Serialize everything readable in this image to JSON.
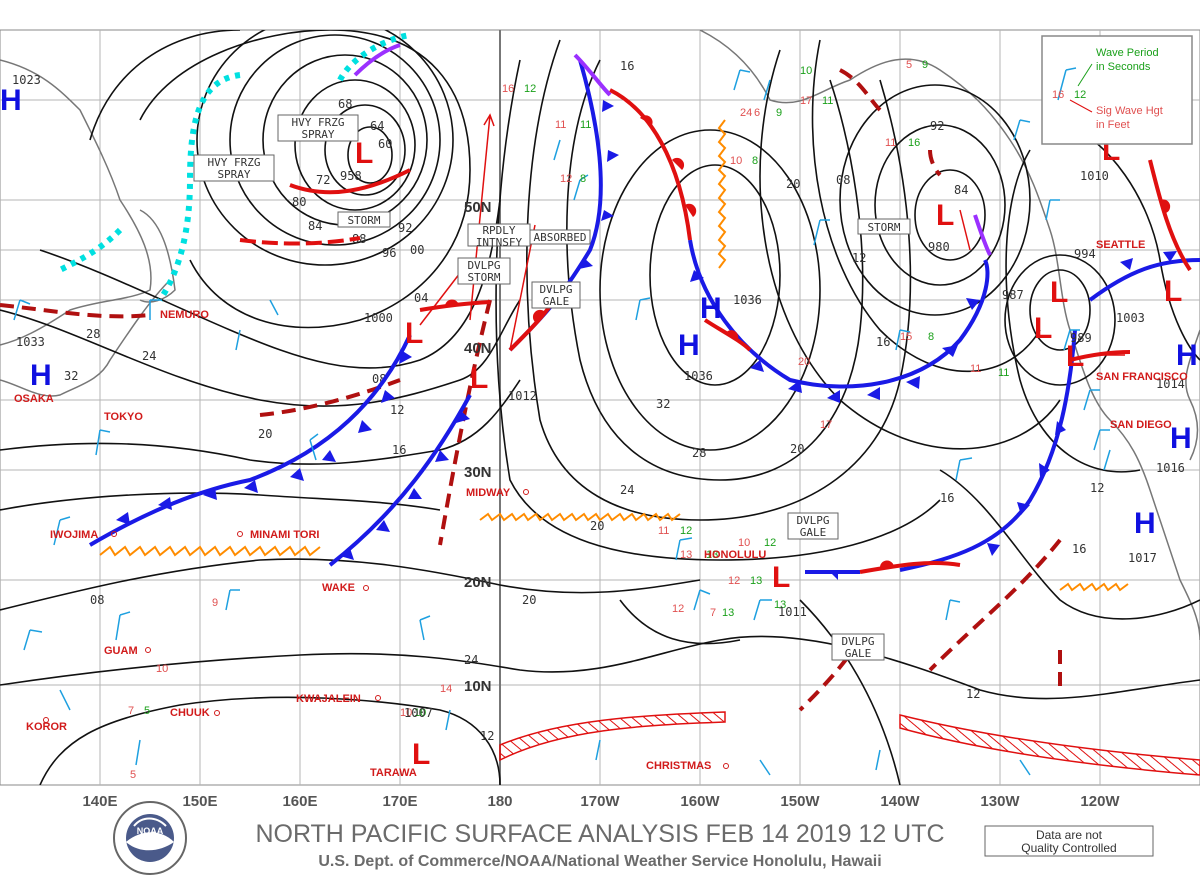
{
  "title": "NORTH PACIFIC SURFACE ANALYSIS FEB 14 2019 12 UTC",
  "subtitle": "U.S. Dept. of Commerce/NOAA/National Weather Service Honolulu, Hawaii",
  "quality_note": {
    "line1": "Data are not",
    "line2": "Quality Controlled"
  },
  "logo_text": "NOAA",
  "legend": {
    "wave_period": "Wave Period",
    "in_seconds": "in Seconds",
    "sig_wave": "Sig Wave Hgt",
    "in_feet": "in Feet",
    "sample_hgt": "16",
    "sample_per": "12"
  },
  "longitudes": [
    "140E",
    "150E",
    "160E",
    "170E",
    "180",
    "170W",
    "160W",
    "150W",
    "140W",
    "130W",
    "120W"
  ],
  "latitudes": [
    "50N",
    "40N",
    "30N",
    "20N",
    "10N"
  ],
  "places": [
    "OSAKA",
    "TOKYO",
    "IWOJIMA",
    "MINAMI TORI",
    "WAKE",
    "GUAM",
    "CHUUK",
    "KWAJALEIN",
    "KOROR",
    "TARAWA",
    "MIDWAY",
    "HONOLULU",
    "CHRISTMAS",
    "NEMURO",
    "SEATTLE",
    "SAN FRANCISCO",
    "SAN DIEGO"
  ],
  "highs": [
    {
      "label": "H",
      "pressure": "1023"
    },
    {
      "label": "H",
      "pressure": "1033"
    },
    {
      "label": "H",
      "pressure": "1036"
    },
    {
      "label": "H",
      "pressure": "1036"
    },
    {
      "label": "H",
      "pressure": "1017"
    },
    {
      "label": "H",
      "pressure": "1003"
    }
  ],
  "lows": [
    {
      "label": "L",
      "pressure": "958"
    },
    {
      "label": "L",
      "pressure": "1000"
    },
    {
      "label": "L",
      "pressure": "980"
    },
    {
      "label": "L",
      "pressure": "1012"
    },
    {
      "label": "L",
      "pressure": "1011"
    },
    {
      "label": "L",
      "pressure": "1007"
    },
    {
      "label": "L",
      "pressure": "994"
    },
    {
      "label": "L",
      "pressure": "989"
    }
  ],
  "box_labels": [
    "HVY FRZG SPRAY",
    "HVY FRZG SPRAY",
    "STORM",
    "DVLPG STORM",
    "DVLPG GALE",
    "STORM",
    "DVLPG GALE",
    "DVLPG GALE",
    "RPDLY INTNSFY",
    "ABSORBED"
  ],
  "isobar_values": [
    "64",
    "60",
    "68",
    "72",
    "80",
    "84",
    "88",
    "92",
    "96",
    "00",
    "04",
    "08",
    "12",
    "16",
    "20",
    "24",
    "28",
    "32",
    "20",
    "24",
    "28",
    "32",
    "16",
    "20",
    "08",
    "12",
    "16",
    "92",
    "84",
    "987",
    "1010",
    "1014",
    "1016",
    "12",
    "16",
    "20",
    "24",
    "12",
    "12",
    "08",
    "20",
    "16",
    "12"
  ],
  "colors": {
    "cold_front": "#1a1ae6",
    "warm_front": "#e01010",
    "trough": "#b01010",
    "ridge": "#ff8c00",
    "ice_edge": "#00e0e0",
    "occluded": "#9b30ff",
    "wind": "#1ea0e0"
  }
}
